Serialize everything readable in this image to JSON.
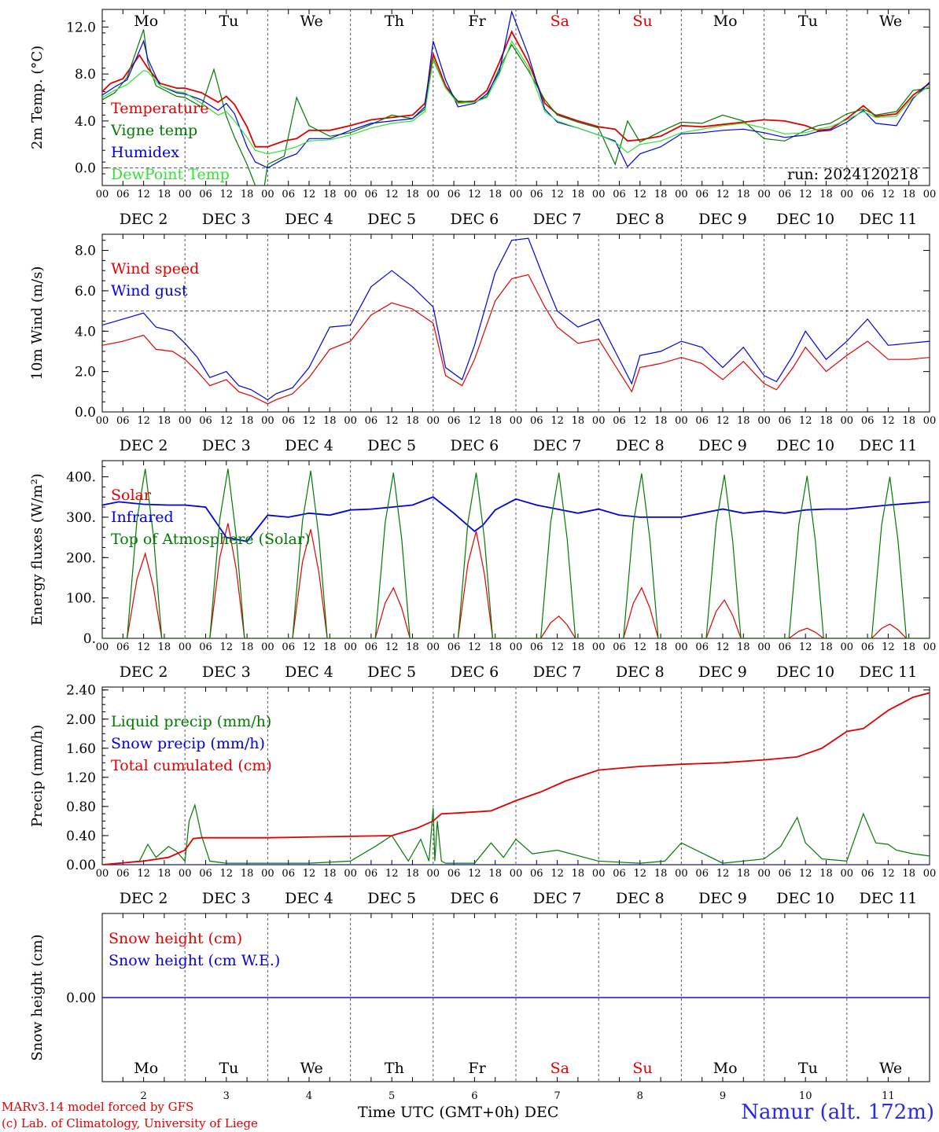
{
  "colors": {
    "red": "#e00000",
    "green": "#007a00",
    "blue": "#0000e0",
    "lightgreen": "#33e033",
    "weekend": "#e00000"
  },
  "days": [
    "Mo",
    "Tu",
    "We",
    "Th",
    "Fr",
    "Sa",
    "Su",
    "Mo",
    "Tu",
    "We"
  ],
  "weekend_days": [
    5,
    6
  ],
  "dates": [
    "DEC  2",
    "DEC  3",
    "DEC  4",
    "DEC  5",
    "DEC  6",
    "DEC  7",
    "DEC  8",
    "DEC  9",
    "DEC 10",
    "DEC 11"
  ],
  "bottom_day_numbers": [
    "2",
    "3",
    "4",
    "5",
    "6",
    "7",
    "8",
    "9",
    "10",
    "11"
  ],
  "hour_ticks": [
    "00",
    "06",
    "12",
    "18"
  ],
  "last_hour_tick": "00",
  "footer": {
    "model": "MARv3.14 model forced by GFS",
    "lab": "(c) Lab. of Climatology, University of Liege",
    "axis_title": "Time UTC (GMT+0h) DEC",
    "station": "Namur (alt. 172m)"
  },
  "chart_data": [
    {
      "type": "line",
      "ylabel": "2m Temp. (°C)",
      "ylim": [
        -1.5,
        13.5
      ],
      "yticks": [
        "0.0",
        "4.0",
        "8.0",
        "12.0"
      ],
      "annotation": "run: 2024120218",
      "x_unit": "days since Dec 2 00 UTC",
      "series": [
        {
          "name": "Temperature",
          "color": "#e00000",
          "x": [
            0,
            0.1,
            0.25,
            0.45,
            0.55,
            0.7,
            0.9,
            1.0,
            1.2,
            1.4,
            1.5,
            1.6,
            1.75,
            1.85,
            2.0,
            2.2,
            2.35,
            2.5,
            2.75,
            3.0,
            3.25,
            3.5,
            3.75,
            3.9,
            4.0,
            4.15,
            4.3,
            4.5,
            4.65,
            4.8,
            4.95,
            5.15,
            5.35,
            5.5,
            5.75,
            6.0,
            6.2,
            6.35,
            6.5,
            6.75,
            7.0,
            7.25,
            7.5,
            7.75,
            8.0,
            8.25,
            8.5,
            8.65,
            8.8,
            9.0,
            9.2,
            9.35,
            9.6,
            9.8,
            10.0
          ],
          "y": [
            6.5,
            7.2,
            7.6,
            9.6,
            8.5,
            7.2,
            6.8,
            6.8,
            6.4,
            5.6,
            6.1,
            5.4,
            3.5,
            1.8,
            1.8,
            2.3,
            2.5,
            3.2,
            3.2,
            3.6,
            4.1,
            4.3,
            4.5,
            5.5,
            9.7,
            7.0,
            5.6,
            5.7,
            6.6,
            9.0,
            11.6,
            9.0,
            5.5,
            4.6,
            4.0,
            3.5,
            3.3,
            2.3,
            2.4,
            2.7,
            3.6,
            3.5,
            3.7,
            3.9,
            4.1,
            4.0,
            3.6,
            3.2,
            3.3,
            4.2,
            5.3,
            4.4,
            4.6,
            6.2,
            7.2
          ]
        },
        {
          "name": "Vigne temp",
          "color": "#007a00",
          "x": [
            0,
            0.15,
            0.3,
            0.5,
            0.55,
            0.65,
            0.9,
            1.0,
            1.2,
            1.35,
            1.5,
            1.6,
            1.75,
            1.85,
            1.95,
            2.0,
            2.2,
            2.35,
            2.5,
            2.75,
            3.0,
            3.25,
            3.5,
            3.75,
            3.9,
            4.0,
            4.15,
            4.3,
            4.5,
            4.65,
            4.8,
            4.95,
            5.15,
            5.35,
            5.5,
            5.75,
            6.0,
            6.2,
            6.35,
            6.5,
            6.75,
            7.0,
            7.25,
            7.5,
            7.75,
            8.0,
            8.25,
            8.5,
            8.65,
            8.8,
            9.0,
            9.2,
            9.35,
            9.6,
            9.8,
            10.0
          ],
          "y": [
            5.8,
            6.4,
            7.7,
            11.8,
            9.0,
            7.0,
            6.1,
            6.0,
            5.2,
            8.4,
            4.4,
            2.6,
            0.3,
            -1.5,
            -2.0,
            0.3,
            1.0,
            6.0,
            3.6,
            2.7,
            3.0,
            3.7,
            4.5,
            4.2,
            5.0,
            9.3,
            6.8,
            5.7,
            5.6,
            6.1,
            8.5,
            10.5,
            8.3,
            5.8,
            4.5,
            3.9,
            3.4,
            0.3,
            4.0,
            2.2,
            3.1,
            3.9,
            3.8,
            4.5,
            4.0,
            2.5,
            2.3,
            3.2,
            3.6,
            3.8,
            4.6,
            5.0,
            4.5,
            4.8,
            6.6,
            6.8
          ]
        },
        {
          "name": "Humidex",
          "color": "#0000e0",
          "x": [
            0,
            0.15,
            0.3,
            0.5,
            0.55,
            0.7,
            0.9,
            1.0,
            1.2,
            1.4,
            1.5,
            1.6,
            1.75,
            1.85,
            2.0,
            2.2,
            2.35,
            2.5,
            2.75,
            3.0,
            3.25,
            3.5,
            3.75,
            3.9,
            4.0,
            4.15,
            4.3,
            4.5,
            4.65,
            4.8,
            4.95,
            5.15,
            5.35,
            5.5,
            5.75,
            6.0,
            6.2,
            6.35,
            6.5,
            6.75,
            7.0,
            7.25,
            7.5,
            7.75,
            8.0,
            8.25,
            8.5,
            8.65,
            8.8,
            9.0,
            9.2,
            9.35,
            9.6,
            9.8,
            10.0
          ],
          "y": [
            6.2,
            6.9,
            7.5,
            10.8,
            9.3,
            7.0,
            6.4,
            6.3,
            5.8,
            4.9,
            5.5,
            4.6,
            1.8,
            0.5,
            0.0,
            0.8,
            1.2,
            2.5,
            2.5,
            3.2,
            3.8,
            4.0,
            4.2,
            5.2,
            10.8,
            7.5,
            5.2,
            5.5,
            6.3,
            8.2,
            13.3,
            9.6,
            5.0,
            3.9,
            3.4,
            2.8,
            2.3,
            0.1,
            1.2,
            1.8,
            2.9,
            3.0,
            3.2,
            3.3,
            3.0,
            2.6,
            2.8,
            3.1,
            3.2,
            3.9,
            4.9,
            3.8,
            3.6,
            5.9,
            7.3
          ]
        },
        {
          "name": "DewPoint Temp",
          "color": "#33e033",
          "x": [
            0,
            0.15,
            0.3,
            0.5,
            0.55,
            0.7,
            0.9,
            1.0,
            1.2,
            1.4,
            1.5,
            1.6,
            1.75,
            1.85,
            2.0,
            2.2,
            2.35,
            2.5,
            2.75,
            3.0,
            3.25,
            3.5,
            3.75,
            3.9,
            4.0,
            4.15,
            4.3,
            4.5,
            4.65,
            4.8,
            4.95,
            5.15,
            5.35,
            5.5,
            5.75,
            6.0,
            6.2,
            6.35,
            6.5,
            6.75,
            7.0,
            7.25,
            7.5,
            7.75,
            8.0,
            8.25,
            8.5,
            8.65,
            8.8,
            9.0,
            9.2,
            9.35,
            9.6,
            9.8,
            10.0
          ],
          "y": [
            6.0,
            6.6,
            7.1,
            8.3,
            8.2,
            7.0,
            6.5,
            6.4,
            5.5,
            4.5,
            4.8,
            4.0,
            2.6,
            1.5,
            1.2,
            1.5,
            1.8,
            2.3,
            2.4,
            2.8,
            3.4,
            3.8,
            4.0,
            4.8,
            9.2,
            6.8,
            5.5,
            5.6,
            6.0,
            8.0,
            10.8,
            8.6,
            4.8,
            4.0,
            3.4,
            2.8,
            2.2,
            1.3,
            2.0,
            2.3,
            3.0,
            3.3,
            3.6,
            3.8,
            3.4,
            2.9,
            3.0,
            3.3,
            3.5,
            4.1,
            4.8,
            4.3,
            4.4,
            6.0,
            7.0
          ]
        }
      ]
    },
    {
      "type": "line",
      "ylabel": "10m Wind (m/s)",
      "ylim": [
        0,
        8.8
      ],
      "yticks": [
        "0.0",
        "2.0",
        "4.0",
        "6.0",
        "8.0"
      ],
      "reference_line": 5.0,
      "series": [
        {
          "name": "Wind speed",
          "color": "#e00000",
          "x": [
            0,
            0.25,
            0.5,
            0.65,
            0.85,
            1.0,
            1.15,
            1.3,
            1.5,
            1.65,
            1.8,
            2.0,
            2.1,
            2.3,
            2.5,
            2.75,
            3.0,
            3.25,
            3.5,
            3.75,
            4.0,
            4.15,
            4.35,
            4.5,
            4.75,
            4.95,
            5.15,
            5.35,
            5.5,
            5.75,
            6.0,
            6.2,
            6.4,
            6.5,
            6.75,
            7.0,
            7.25,
            7.5,
            7.75,
            8.0,
            8.15,
            8.35,
            8.5,
            8.75,
            9.0,
            9.25,
            9.5,
            9.75,
            10.0
          ],
          "y": [
            3.3,
            3.5,
            3.8,
            3.1,
            3.0,
            2.6,
            2.0,
            1.3,
            1.6,
            1.0,
            0.8,
            0.4,
            0.6,
            0.9,
            1.7,
            3.1,
            3.5,
            4.8,
            5.4,
            5.1,
            4.4,
            1.8,
            1.3,
            2.6,
            5.5,
            6.6,
            6.8,
            5.2,
            4.2,
            3.4,
            3.6,
            2.3,
            1.0,
            2.2,
            2.4,
            2.7,
            2.4,
            1.6,
            2.5,
            1.4,
            1.1,
            2.2,
            3.2,
            2.0,
            2.8,
            3.5,
            2.6,
            2.6,
            2.7
          ]
        },
        {
          "name": "Wind gust",
          "color": "#0000e0",
          "x": [
            0,
            0.25,
            0.5,
            0.65,
            0.85,
            1.0,
            1.15,
            1.3,
            1.5,
            1.65,
            1.8,
            2.0,
            2.1,
            2.3,
            2.5,
            2.75,
            3.0,
            3.25,
            3.5,
            3.75,
            4.0,
            4.15,
            4.35,
            4.5,
            4.75,
            4.95,
            5.15,
            5.35,
            5.5,
            5.75,
            6.0,
            6.2,
            6.4,
            6.5,
            6.75,
            7.0,
            7.25,
            7.5,
            7.75,
            8.0,
            8.15,
            8.35,
            8.5,
            8.75,
            9.0,
            9.25,
            9.5,
            9.75,
            10.0
          ],
          "y": [
            4.3,
            4.6,
            4.9,
            4.2,
            4.0,
            3.4,
            2.7,
            1.7,
            2.0,
            1.3,
            1.1,
            0.6,
            0.9,
            1.2,
            2.2,
            4.2,
            4.3,
            6.2,
            7.0,
            6.2,
            5.2,
            2.2,
            1.6,
            3.3,
            6.9,
            8.5,
            8.6,
            6.5,
            5.0,
            4.2,
            4.6,
            3.0,
            1.4,
            2.8,
            3.0,
            3.5,
            3.2,
            2.2,
            3.2,
            1.8,
            1.5,
            2.8,
            4.0,
            2.6,
            3.5,
            4.6,
            3.3,
            3.4,
            3.5
          ]
        }
      ]
    },
    {
      "type": "line",
      "ylabel": "Energy fluxes (W/m²)",
      "ylim": [
        0,
        440
      ],
      "yticks": [
        "0.",
        "100.",
        "200.",
        "300.",
        "400."
      ],
      "series": [
        {
          "name": "Solar",
          "color": "#e00000",
          "peaks": [
            210,
            285,
            270,
            125,
            265,
            55,
            125,
            95,
            25,
            35
          ]
        },
        {
          "name": "Infrared",
          "color": "#0000e0",
          "x": [
            0,
            0.2,
            0.5,
            0.8,
            1.0,
            1.25,
            1.5,
            1.75,
            2.0,
            2.25,
            2.5,
            2.75,
            3.0,
            3.25,
            3.5,
            3.75,
            4.0,
            4.25,
            4.5,
            4.6,
            4.75,
            5.0,
            5.25,
            5.5,
            5.75,
            6.0,
            6.25,
            6.5,
            6.75,
            7.0,
            7.25,
            7.5,
            7.75,
            8.0,
            8.25,
            8.5,
            8.75,
            9.0,
            9.5,
            10.0
          ],
          "y": [
            330,
            338,
            332,
            330,
            330,
            325,
            250,
            240,
            305,
            300,
            310,
            305,
            318,
            320,
            325,
            330,
            350,
            310,
            265,
            280,
            318,
            345,
            330,
            320,
            310,
            320,
            305,
            300,
            300,
            300,
            310,
            320,
            310,
            315,
            310,
            318,
            320,
            320,
            330,
            338
          ]
        },
        {
          "name": "Top of Atmosphere (Solar)",
          "color": "#007a00",
          "peaks": [
            420,
            420,
            415,
            410,
            410,
            410,
            408,
            405,
            402,
            400
          ]
        }
      ]
    },
    {
      "type": "line",
      "ylabel": "Precip (mm/h)",
      "ylim": [
        0,
        2.44
      ],
      "yticks": [
        "0.00",
        "0.40",
        "0.80",
        "1.20",
        "1.60",
        "2.00",
        "2.40"
      ],
      "series": [
        {
          "name": "Liquid precip (mm/h)",
          "color": "#007a00",
          "x": [
            0,
            0.45,
            0.55,
            0.65,
            0.8,
            0.9,
            1.0,
            1.05,
            1.12,
            1.2,
            1.3,
            1.5,
            2.5,
            3.0,
            3.3,
            3.5,
            3.7,
            3.85,
            3.95,
            4.0,
            4.02,
            4.05,
            4.1,
            4.15,
            4.2,
            4.5,
            4.7,
            4.85,
            5.0,
            5.2,
            5.5,
            6.0,
            6.5,
            6.8,
            7.0,
            7.5,
            8.0,
            8.2,
            8.4,
            8.5,
            8.7,
            9.0,
            9.2,
            9.35,
            9.5,
            9.6,
            9.8,
            10.0
          ],
          "y": [
            0,
            0.05,
            0.28,
            0.1,
            0.25,
            0.18,
            0.05,
            0.6,
            0.82,
            0.4,
            0.05,
            0.02,
            0.02,
            0.05,
            0.25,
            0.4,
            0.05,
            0.35,
            0.05,
            0.78,
            0.05,
            0.6,
            0.05,
            0.02,
            0.02,
            0.02,
            0.3,
            0.1,
            0.35,
            0.15,
            0.2,
            0.05,
            0.02,
            0.05,
            0.3,
            0.02,
            0.08,
            0.25,
            0.65,
            0.3,
            0.08,
            0.05,
            0.7,
            0.3,
            0.28,
            0.2,
            0.15,
            0.12
          ]
        },
        {
          "name": "Snow precip (mm/h)",
          "color": "#0000e0",
          "x": [
            0,
            10
          ],
          "y": [
            0,
            0
          ]
        },
        {
          "name": "Total cumulated (cm)",
          "color": "#e00000",
          "x": [
            0,
            0.5,
            0.8,
            1.0,
            1.1,
            1.2,
            2.0,
            3.0,
            3.5,
            3.8,
            4.0,
            4.1,
            4.3,
            4.7,
            5.0,
            5.3,
            5.6,
            6.0,
            6.5,
            7.0,
            7.5,
            8.0,
            8.4,
            8.7,
            9.0,
            9.2,
            9.5,
            9.8,
            10.0
          ],
          "y": [
            0,
            0.05,
            0.1,
            0.2,
            0.36,
            0.37,
            0.37,
            0.39,
            0.4,
            0.5,
            0.6,
            0.7,
            0.71,
            0.74,
            0.88,
            1.0,
            1.15,
            1.3,
            1.35,
            1.38,
            1.4,
            1.44,
            1.48,
            1.6,
            1.83,
            1.87,
            2.12,
            2.3,
            2.36
          ]
        }
      ]
    },
    {
      "type": "line",
      "ylabel": "Snow height (cm)",
      "ytick": "0.00",
      "series": [
        {
          "name": "Snow height (cm)",
          "color": "#e00000",
          "x": [
            0,
            10
          ],
          "y": [
            0,
            0
          ]
        },
        {
          "name": "Snow height (cm W.E.)",
          "color": "#0000e0",
          "x": [
            0,
            10
          ],
          "y": [
            0,
            0
          ]
        }
      ]
    }
  ]
}
